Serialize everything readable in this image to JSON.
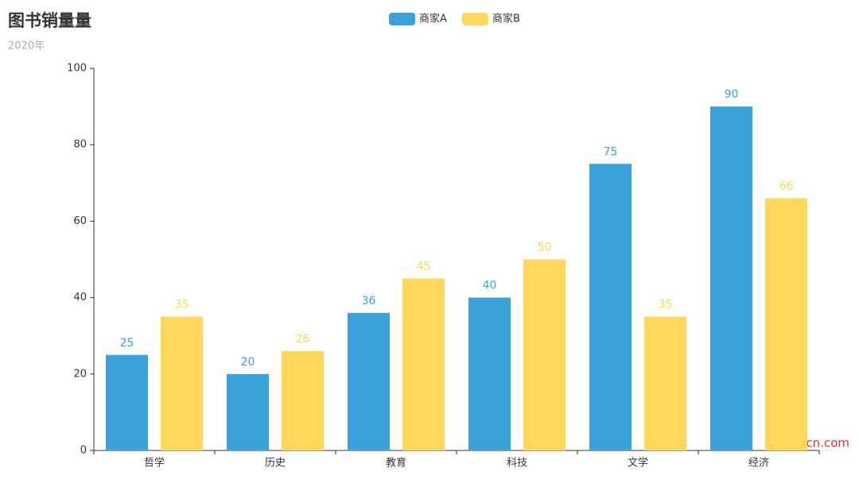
{
  "chart_data": {
    "type": "bar",
    "title": "图书销量量",
    "subtitle": "2020年",
    "categories": [
      "哲学",
      "历史",
      "教育",
      "科技",
      "文学",
      "经济"
    ],
    "series": [
      {
        "name": "商家A",
        "color": "#3ba1da",
        "values": [
          25,
          20,
          36,
          40,
          75,
          90
        ]
      },
      {
        "name": "商家B",
        "color": "#ffd75b",
        "values": [
          35,
          26,
          45,
          50,
          35,
          66
        ]
      }
    ],
    "ylim": [
      0,
      100
    ],
    "yticks": [
      0,
      20,
      40,
      60,
      80,
      100
    ],
    "grid": false,
    "watermark": "Yuucn.com"
  }
}
